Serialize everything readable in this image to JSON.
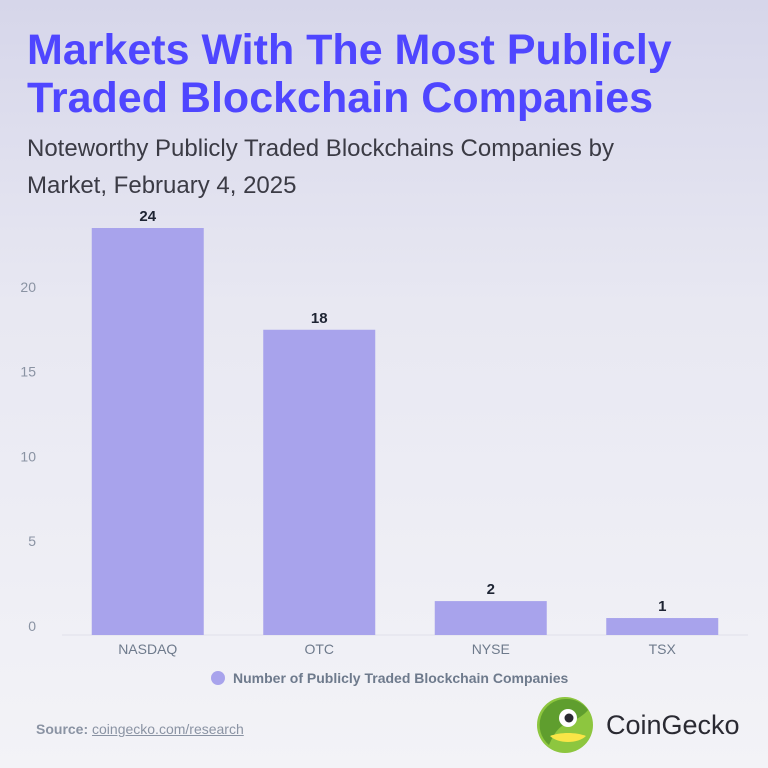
{
  "header": {
    "title_line1": "Markets With The Most Publicly",
    "title_line2": "Traded Blockchain Companies",
    "subtitle_line1": "Noteworthy Publicly Traded Blockchains Companies by",
    "subtitle_line2": "Market, February 4, 2025"
  },
  "chart_data": {
    "type": "bar",
    "title": "Markets With The Most Publicly Traded Blockchain Companies",
    "subtitle": "Noteworthy Publicly Traded Blockchains Companies by Market, February 4, 2025",
    "categories": [
      "NASDAQ",
      "OTC",
      "NYSE",
      "TSX"
    ],
    "series": [
      {
        "name": "Number of Publicly Traded Blockchain Companies",
        "values": [
          24,
          18,
          2,
          1
        ]
      }
    ],
    "y_ticks": [
      0,
      5,
      10,
      15,
      20
    ],
    "ylim": [
      0,
      24
    ],
    "xlabel": "",
    "ylabel": "",
    "grid": false,
    "legend_position": "bottom",
    "bar_color": "#a8a3ec"
  },
  "legend": {
    "label": "Number of Publicly Traded Blockchain Companies"
  },
  "footer": {
    "source_label": "Source:",
    "source_link": "coingecko.com/research",
    "brand_name": "CoinGecko",
    "brand_icon": "coingecko-logo"
  },
  "colors": {
    "title": "#4f46ff",
    "bar": "#a8a3ec",
    "axis_text": "#8a93a3",
    "value_text": "#1e2433"
  }
}
